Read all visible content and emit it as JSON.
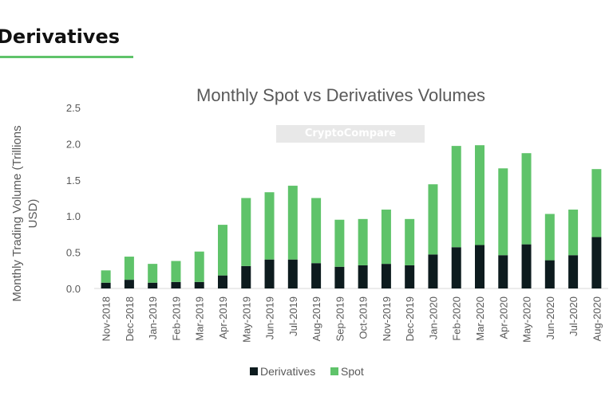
{
  "heading": "Derivatives",
  "watermark": "CryptoCompare",
  "colors": {
    "accent": "#5fc36a",
    "derivatives": "#0d1b1e",
    "spot": "#5fc36a"
  },
  "chart_data": {
    "type": "bar",
    "stacked": true,
    "title": "Monthly Spot vs Derivatives Volumes",
    "xlabel": "",
    "ylabel": "Monthly Trading Volume (Trillions USD)",
    "ylabel_lines": [
      "Monthly Trading Volume (Trillions",
      "USD)"
    ],
    "ylim": [
      0,
      2.5
    ],
    "yticks": [
      "0.0",
      "0.5",
      "1.0",
      "1.5",
      "2.0",
      "2.5"
    ],
    "grid": false,
    "legend": "bottom",
    "categories": [
      "Nov-2018",
      "Dec-2018",
      "Jan-2019",
      "Feb-2019",
      "Mar-2019",
      "Apr-2019",
      "May-2019",
      "Jun-2019",
      "Jul-2019",
      "Aug-2019",
      "Sep-2019",
      "Oct-2019",
      "Nov-2019",
      "Dec-2019",
      "Jan-2020",
      "Feb-2020",
      "Mar-2020",
      "Apr-2020",
      "May-2020",
      "Jun-2020",
      "Jul-2020",
      "Aug-2020"
    ],
    "series": [
      {
        "name": "Derivatives",
        "color": "#0d1b1e",
        "values": [
          0.08,
          0.12,
          0.08,
          0.09,
          0.09,
          0.18,
          0.31,
          0.4,
          0.4,
          0.35,
          0.3,
          0.32,
          0.34,
          0.32,
          0.47,
          0.57,
          0.6,
          0.46,
          0.61,
          0.39,
          0.46,
          0.71
        ]
      },
      {
        "name": "Spot",
        "color": "#5fc36a",
        "values": [
          0.17,
          0.32,
          0.26,
          0.29,
          0.42,
          0.7,
          0.94,
          0.93,
          1.02,
          0.9,
          0.65,
          0.64,
          0.75,
          0.64,
          0.97,
          1.4,
          1.38,
          1.2,
          1.26,
          0.64,
          0.63,
          0.94
        ]
      }
    ]
  }
}
